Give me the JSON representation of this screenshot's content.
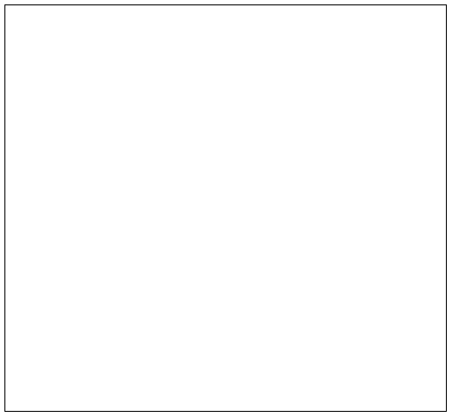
{
  "colors": {
    "background": "#ffffff",
    "frame": "#000000",
    "colormap": [
      "#e8f6d9",
      "#c6eac1",
      "#9fd8bd",
      "#6cc4c6",
      "#3fa4cc",
      "#1d80ba",
      "#0a5596",
      "#07346e"
    ]
  },
  "icons": {
    "map_shape": "heatmap-blob"
  }
}
